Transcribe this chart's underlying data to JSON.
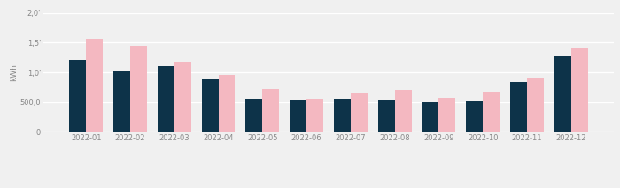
{
  "months": [
    "2022-01",
    "2022-02",
    "2022-03",
    "2022-04",
    "2022-05",
    "2022-06",
    "2022-07",
    "2022-08",
    "2022-09",
    "2022-10",
    "2022-11",
    "2022-12"
  ],
  "el_kwh": [
    1210,
    1020,
    1100,
    890,
    560,
    545,
    555,
    545,
    495,
    520,
    830,
    1270
  ],
  "prev_kwh": [
    1570,
    1440,
    1180,
    950,
    710,
    560,
    660,
    700,
    570,
    670,
    910,
    1420
  ],
  "bar_color_el": "#0d3349",
  "bar_color_prev": "#f4b8c1",
  "ylabel": "kWh",
  "ylim_min": 0,
  "ylim_max": 2000,
  "yticks": [
    0,
    500,
    1000,
    1500,
    2000
  ],
  "ytick_labels": [
    "0",
    "500,0",
    "1,0'",
    "1,5'",
    "2,0'"
  ],
  "background_color": "#f0f0f0",
  "grid_color": "#ffffff",
  "bar_width": 0.38,
  "label_fontsize": 6.5,
  "tick_fontsize": 6.0,
  "legend_fontsize": 6.5
}
